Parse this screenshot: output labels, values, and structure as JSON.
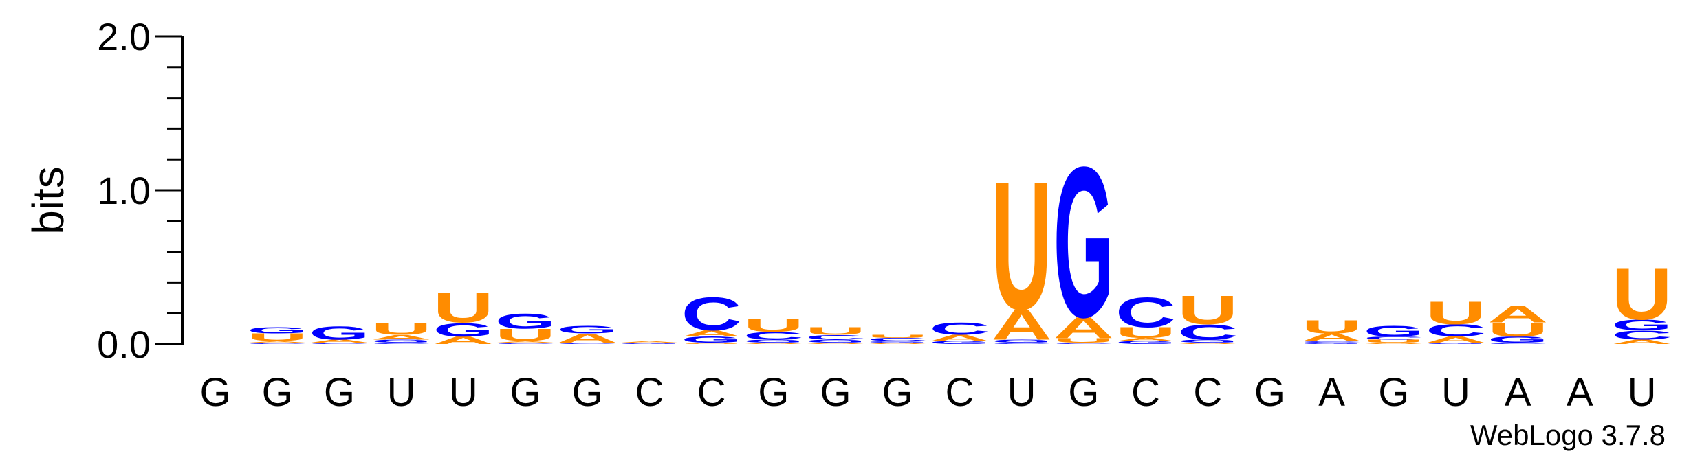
{
  "chart_data": {
    "type": "sequence-logo",
    "ylabel": "bits",
    "ylim": [
      0,
      2.0
    ],
    "y_ticks": [
      "0.0",
      "1.0",
      "2.0"
    ],
    "sequence": [
      "G",
      "G",
      "G",
      "U",
      "U",
      "G",
      "G",
      "C",
      "C",
      "G",
      "G",
      "G",
      "C",
      "U",
      "G",
      "C",
      "C",
      "G",
      "A",
      "G",
      "U",
      "A",
      "A",
      "U"
    ],
    "colors": {
      "A": "#ff8c00",
      "U": "#ff8c00",
      "G": "#0000ff",
      "C": "#0000ff"
    },
    "positions": [
      {
        "stack": []
      },
      {
        "stack": [
          {
            "letter": "C",
            "bits": 0.01
          },
          {
            "letter": "A",
            "bits": 0.01
          },
          {
            "letter": "U",
            "bits": 0.05
          },
          {
            "letter": "G",
            "bits": 0.04
          }
        ]
      },
      {
        "stack": [
          {
            "letter": "C",
            "bits": 0.01
          },
          {
            "letter": "A",
            "bits": 0.02
          },
          {
            "letter": "G",
            "bits": 0.09
          }
        ]
      },
      {
        "stack": [
          {
            "letter": "C",
            "bits": 0.01
          },
          {
            "letter": "G",
            "bits": 0.02
          },
          {
            "letter": "A",
            "bits": 0.03
          },
          {
            "letter": "U",
            "bits": 0.08
          }
        ]
      },
      {
        "stack": [
          {
            "letter": "A",
            "bits": 0.05
          },
          {
            "letter": "G",
            "bits": 0.09
          },
          {
            "letter": "U",
            "bits": 0.2
          }
        ]
      },
      {
        "stack": [
          {
            "letter": "C",
            "bits": 0.01
          },
          {
            "letter": "A",
            "bits": 0.01
          },
          {
            "letter": "U",
            "bits": 0.08
          },
          {
            "letter": "G",
            "bits": 0.1
          }
        ]
      },
      {
        "stack": [
          {
            "letter": "C",
            "bits": 0.01
          },
          {
            "letter": "A",
            "bits": 0.06
          },
          {
            "letter": "G",
            "bits": 0.05
          }
        ]
      },
      {
        "stack": [
          {
            "letter": "G",
            "bits": 0.01
          },
          {
            "letter": "A",
            "bits": 0.01
          }
        ]
      },
      {
        "stack": [
          {
            "letter": "U",
            "bits": 0.01
          },
          {
            "letter": "G",
            "bits": 0.04
          },
          {
            "letter": "A",
            "bits": 0.04
          },
          {
            "letter": "C",
            "bits": 0.22
          }
        ]
      },
      {
        "stack": [
          {
            "letter": "A",
            "bits": 0.01
          },
          {
            "letter": "G",
            "bits": 0.02
          },
          {
            "letter": "C",
            "bits": 0.05
          },
          {
            "letter": "U",
            "bits": 0.09
          }
        ]
      },
      {
        "stack": [
          {
            "letter": "A",
            "bits": 0.01
          },
          {
            "letter": "G",
            "bits": 0.02
          },
          {
            "letter": "C",
            "bits": 0.03
          },
          {
            "letter": "U",
            "bits": 0.05
          }
        ]
      },
      {
        "stack": [
          {
            "letter": "A",
            "bits": 0.01
          },
          {
            "letter": "G",
            "bits": 0.01
          },
          {
            "letter": "C",
            "bits": 0.02
          },
          {
            "letter": "U",
            "bits": 0.02
          }
        ]
      },
      {
        "stack": [
          {
            "letter": "G",
            "bits": 0.02
          },
          {
            "letter": "A",
            "bits": 0.04
          },
          {
            "letter": "C",
            "bits": 0.08
          }
        ]
      },
      {
        "stack": [
          {
            "letter": "C",
            "bits": 0.01
          },
          {
            "letter": "G",
            "bits": 0.02
          },
          {
            "letter": "A",
            "bits": 0.2
          },
          {
            "letter": "U",
            "bits": 0.85
          }
        ]
      },
      {
        "stack": [
          {
            "letter": "C",
            "bits": 0.01
          },
          {
            "letter": "U",
            "bits": 0.03
          },
          {
            "letter": "A",
            "bits": 0.14
          },
          {
            "letter": "G",
            "bits": 1.0
          }
        ]
      },
      {
        "stack": [
          {
            "letter": "G",
            "bits": 0.02
          },
          {
            "letter": "A",
            "bits": 0.02
          },
          {
            "letter": "U",
            "bits": 0.07
          },
          {
            "letter": "C",
            "bits": 0.2
          }
        ]
      },
      {
        "stack": [
          {
            "letter": "A",
            "bits": 0.01
          },
          {
            "letter": "G",
            "bits": 0.02
          },
          {
            "letter": "C",
            "bits": 0.1
          },
          {
            "letter": "U",
            "bits": 0.19
          }
        ]
      },
      {
        "stack": []
      },
      {
        "stack": [
          {
            "letter": "G",
            "bits": 0.01
          },
          {
            "letter": "C",
            "bits": 0.01
          },
          {
            "letter": "A",
            "bits": 0.05
          },
          {
            "letter": "U",
            "bits": 0.09
          }
        ]
      },
      {
        "stack": [
          {
            "letter": "A",
            "bits": 0.01
          },
          {
            "letter": "U",
            "bits": 0.02
          },
          {
            "letter": "C",
            "bits": 0.02
          },
          {
            "letter": "G",
            "bits": 0.07
          }
        ]
      },
      {
        "stack": [
          {
            "letter": "G",
            "bits": 0.01
          },
          {
            "letter": "A",
            "bits": 0.04
          },
          {
            "letter": "C",
            "bits": 0.08
          },
          {
            "letter": "U",
            "bits": 0.15
          }
        ]
      },
      {
        "stack": [
          {
            "letter": "C",
            "bits": 0.01
          },
          {
            "letter": "G",
            "bits": 0.04
          },
          {
            "letter": "U",
            "bits": 0.09
          },
          {
            "letter": "A",
            "bits": 0.11
          }
        ]
      },
      {
        "stack": []
      },
      {
        "stack": [
          {
            "letter": "A",
            "bits": 0.03
          },
          {
            "letter": "C",
            "bits": 0.06
          },
          {
            "letter": "G",
            "bits": 0.07
          },
          {
            "letter": "U",
            "bits": 0.34
          }
        ]
      }
    ]
  },
  "footer": {
    "credit": "WebLogo 3.7.8"
  }
}
